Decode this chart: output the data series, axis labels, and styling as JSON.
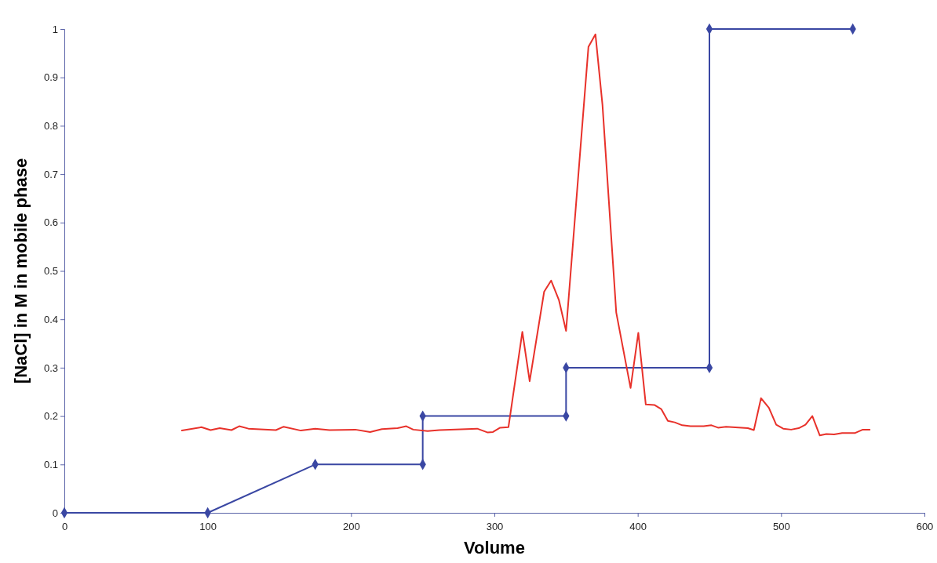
{
  "chart_data": {
    "type": "line",
    "xlabel": "Volume",
    "ylabel": "[NaCl] in M in mobile phase",
    "xlim": [
      0,
      600
    ],
    "xticks": [
      0,
      100,
      200,
      300,
      400,
      500,
      600
    ],
    "ylim": [
      0,
      1
    ],
    "yticks": [
      0,
      0.1,
      0.2,
      0.3,
      0.4,
      0.5,
      0.6,
      0.7,
      0.8,
      0.9,
      1
    ],
    "grid": false,
    "series": [
      {
        "color": "#3a47a3",
        "marker": "diamond",
        "x": [
          0,
          100,
          175,
          250,
          250,
          350,
          350,
          450,
          450,
          550
        ],
        "values": [
          0,
          0,
          0.1,
          0.1,
          0.2,
          0.2,
          0.3,
          0.3,
          1,
          1
        ]
      },
      {
        "color": "#e8312a",
        "marker": "none",
        "x": [
          82,
          95.6,
          102,
          108.4,
          116.6,
          122,
          128.4,
          147.6,
          153,
          165,
          175,
          185,
          203,
          213.3,
          221.5,
          232.5,
          238.5,
          243.4,
          253.4,
          261.6,
          288,
          295.4,
          299,
          304,
          309.8,
          319.5,
          324.6,
          334.7,
          339.6,
          345,
          350,
          365.6,
          370.5,
          375.4,
          385,
          395,
          400.4,
          405.6,
          411.6,
          416.5,
          421,
          425.8,
          431,
          436.8,
          446,
          451.4,
          456,
          461.6,
          476.8,
          481,
          486,
          491.5,
          496.6,
          501.5,
          507,
          512.3,
          517,
          521.8,
          527,
          531.6,
          537,
          542.6,
          551.7,
          557,
          561.8
        ],
        "values": [
          0.17,
          0.177,
          0.171,
          0.175,
          0.171,
          0.179,
          0.174,
          0.171,
          0.178,
          0.17,
          0.174,
          0.171,
          0.172,
          0.167,
          0.173,
          0.175,
          0.179,
          0.172,
          0.169,
          0.171,
          0.174,
          0.166,
          0.167,
          0.176,
          0.177,
          0.374,
          0.272,
          0.457,
          0.48,
          0.44,
          0.376,
          0.963,
          0.989,
          0.843,
          0.414,
          0.258,
          0.372,
          0.224,
          0.223,
          0.214,
          0.19,
          0.187,
          0.181,
          0.179,
          0.179,
          0.181,
          0.176,
          0.178,
          0.175,
          0.171,
          0.237,
          0.217,
          0.182,
          0.174,
          0.172,
          0.175,
          0.182,
          0.2,
          0.16,
          0.163,
          0.162,
          0.165,
          0.165,
          0.172,
          0.172
        ]
      }
    ]
  }
}
